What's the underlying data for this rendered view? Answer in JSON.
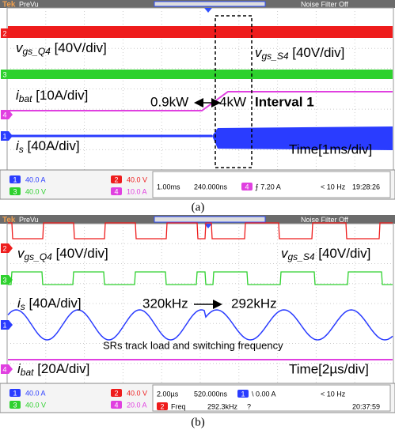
{
  "panels": [
    {
      "header": {
        "brand": "Tek",
        "mode": "PreVu",
        "filter": "Noise Filter Off"
      },
      "channel_markers": [
        "2",
        "3",
        "4",
        "1"
      ],
      "labels": [
        {
          "main": "v",
          "sub": "gs_Q4",
          "rest": " [40V/div]"
        },
        {
          "main": "v",
          "sub": "gs_S4",
          "rest": " [40V/div]"
        },
        {
          "main": "i",
          "sub": "bat",
          "rest": " [10A/div]"
        },
        {
          "main": "i",
          "sub": "s",
          "rest": " [40A/div]"
        }
      ],
      "annotations": [
        "0.9kW",
        "4kW",
        "Interval 1",
        "Time[1ms/div]"
      ],
      "readouts": [
        {
          "ch": "1",
          "text": "40.0 A"
        },
        {
          "ch": "2",
          "text": "40.0 V"
        },
        {
          "ch": "3",
          "text": "40.0 V"
        },
        {
          "ch": "4",
          "text": "10.0 A"
        }
      ],
      "status": [
        "1.00ms",
        "240.000ns",
        "4",
        "⨍ 7.20 A",
        "< 10 Hz",
        "19:28:26"
      ],
      "caption": "(a)"
    },
    {
      "header": {
        "brand": "Tek",
        "mode": "PreVu",
        "filter": "Noise Filter Off"
      },
      "channel_markers": [
        "2",
        "3",
        "1",
        "4"
      ],
      "labels": [
        {
          "main": "v",
          "sub": "gs_Q4",
          "rest": " [40V/div]"
        },
        {
          "main": "v",
          "sub": "gs_S4",
          "rest": " [40V/div]"
        },
        {
          "main": "i",
          "sub": "s",
          "rest": " [40A/div]"
        },
        {
          "main": "i",
          "sub": "bat",
          "rest": " [20A/div]"
        }
      ],
      "annotations": [
        "320kHz",
        "292kHz",
        "SRs track load and switching frequency",
        "Time[2µs/div]"
      ],
      "readouts": [
        {
          "ch": "1",
          "text": "40.0 A"
        },
        {
          "ch": "2",
          "text": "40.0 V"
        },
        {
          "ch": "3",
          "text": "40.0 V"
        },
        {
          "ch": "4",
          "text": "20.0 A"
        }
      ],
      "status": [
        "2.00µs",
        "520.000ns",
        "1",
        "\\ 0.00 A",
        "< 10 Hz",
        "2",
        "Freq",
        "292.3kHz",
        "?",
        "20:37:59"
      ],
      "caption": "(b)"
    }
  ]
}
